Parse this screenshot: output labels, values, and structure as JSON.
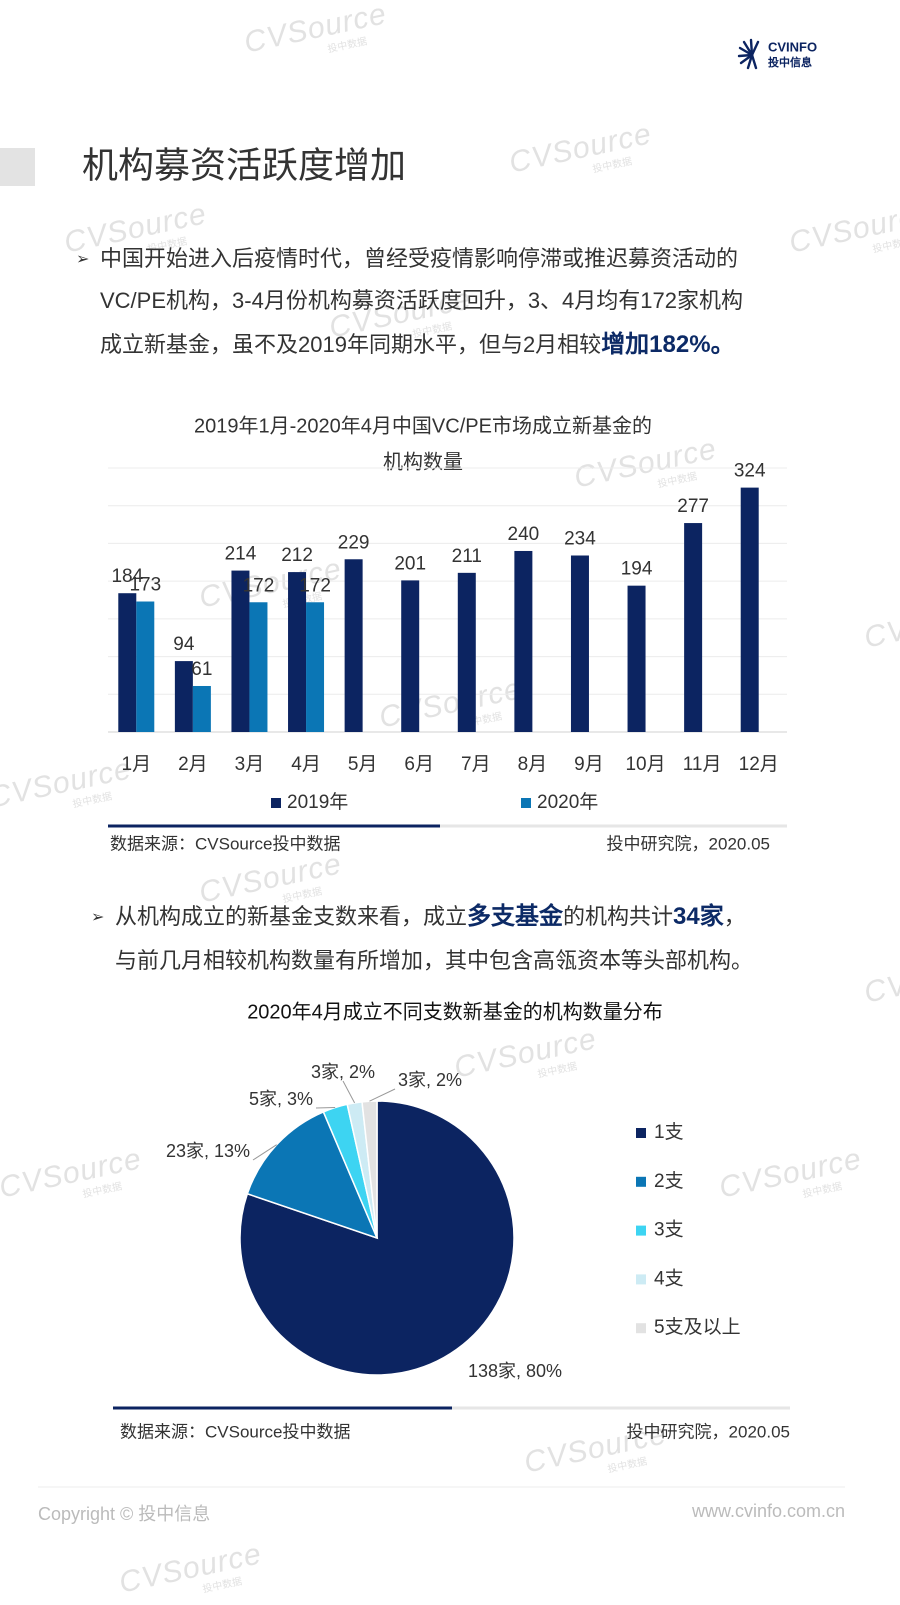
{
  "logo": {
    "brand": "CVINFO",
    "name": "投中信息"
  },
  "watermark": {
    "brand": "CVSource",
    "caption": "投中数据"
  },
  "heading": "机构募资活跃度增加",
  "paragraphs": [
    {
      "lines": [
        [
          {
            "text": "中国开始进入后疫情时代，曾经受疫情影响停滞或推迟募资活动的"
          }
        ],
        [
          {
            "text": "VC/PE机构，3-4月份机构募资活跃度回升，3、4月均有172家机构"
          }
        ],
        [
          {
            "text": "成立新基金，虽不及2019年同期水平，但与2月相较"
          },
          {
            "text": "增加182%。",
            "emphasis": true
          }
        ]
      ]
    },
    {
      "lines": [
        [
          {
            "text": "从机构成立的新基金支数来看，成立"
          },
          {
            "text": "多支基金",
            "emphasis": true
          },
          {
            "text": "的机构共计"
          },
          {
            "text": "34家",
            "emphasis": true
          },
          {
            "text": "，"
          }
        ],
        [
          {
            "text": "与前几月相较机构数量有所增加，其中包含高瓴资本等头部机构。"
          }
        ]
      ]
    }
  ],
  "chart_data": [
    {
      "type": "bar",
      "title": [
        "2019年1月-2020年4月中国VC/PE市场成立新基金的",
        "机构数量"
      ],
      "categories": [
        "1月",
        "2月",
        "3月",
        "4月",
        "5月",
        "6月",
        "7月",
        "8月",
        "9月",
        "10月",
        "11月",
        "12月"
      ],
      "series": [
        {
          "name": "2019年",
          "color": "#0c2461",
          "values": [
            184,
            94,
            214,
            212,
            229,
            201,
            211,
            240,
            234,
            194,
            277,
            324
          ]
        },
        {
          "name": "2020年",
          "color": "#0b76b5",
          "values": [
            173,
            61,
            172,
            172,
            null,
            null,
            null,
            null,
            null,
            null,
            null,
            null
          ]
        }
      ],
      "ylim": [
        0,
        350
      ],
      "yticks": [
        0,
        50,
        100,
        150,
        200,
        250,
        300,
        350
      ],
      "grid": true,
      "legend": "bottom",
      "source": "数据来源：CVSource投中数据",
      "credit": "投中研究院，2020.05"
    },
    {
      "type": "pie",
      "title": "2020年4月成立不同支数新基金的机构数量分布",
      "categories": [
        "1支",
        "2支",
        "3支",
        "4支",
        "5支及以上"
      ],
      "values": [
        138,
        23,
        5,
        3,
        3
      ],
      "value_labels": [
        "138家, 80%",
        "23家, 13%",
        "5家, 3%",
        "3家, 2%",
        "3家, 2%"
      ],
      "colors": [
        "#0c2461",
        "#0b76b5",
        "#3dd4f2",
        "#cdebf4",
        "#e2e2e2"
      ],
      "legend": "right",
      "source": "数据来源：CVSource投中数据",
      "credit": "投中研究院，2020.05"
    }
  ],
  "footer": {
    "copyright": "Copyright © 投中信息",
    "url": "www.cvinfo.com.cn"
  }
}
